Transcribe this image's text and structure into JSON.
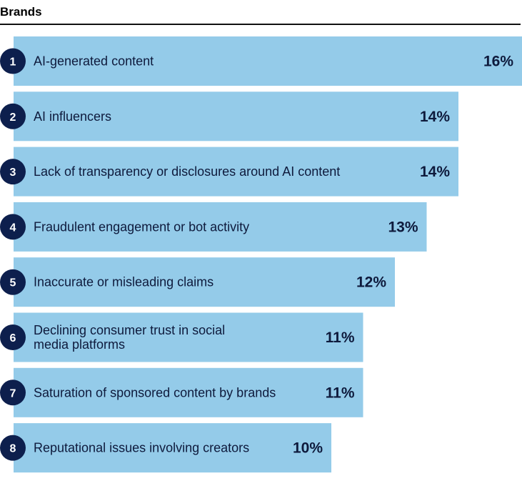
{
  "chart_data": {
    "type": "bar",
    "orientation": "horizontal",
    "title": "Brands",
    "value_suffix": "%",
    "items": [
      {
        "rank": "1",
        "label": [
          "AI-generated content"
        ],
        "value": 16
      },
      {
        "rank": "2",
        "label": [
          "AI influencers"
        ],
        "value": 14
      },
      {
        "rank": "3",
        "label": [
          "Lack of transparency or disclosures around AI content"
        ],
        "value": 14
      },
      {
        "rank": "4",
        "label": [
          "Fraudulent engagement or bot activity"
        ],
        "value": 13
      },
      {
        "rank": "5",
        "label": [
          "Inaccurate or misleading claims"
        ],
        "value": 12
      },
      {
        "rank": "6",
        "label": [
          "Declining consumer trust in social",
          "media platforms"
        ],
        "value": 11
      },
      {
        "rank": "7",
        "label": [
          "Saturation of sponsored content by brands"
        ],
        "value": 11
      },
      {
        "rank": "8",
        "label": [
          "Reputational issues involving creators"
        ],
        "value": 10
      }
    ],
    "colors": {
      "bar": "#94cbe9",
      "badge": "#0d1f4d",
      "text": "#0e1a3c"
    }
  }
}
